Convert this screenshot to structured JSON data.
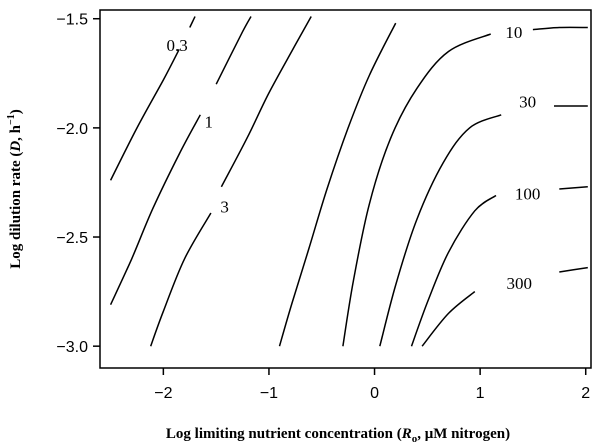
{
  "chart_data": {
    "type": "contour",
    "xlabel_parts": {
      "main": "Log limiting nutrient concentration (",
      "var": "R",
      "sub": "o",
      "rest": ", μM nitrogen)"
    },
    "ylabel_parts": {
      "main": "Log dilution rate (",
      "var": "D",
      "rest": ", h",
      "sup": "−1",
      "tail": ")"
    },
    "xlim": [
      -2.6,
      2.05
    ],
    "ylim": [
      -3.1,
      -1.46
    ],
    "xticks": [
      -2,
      -1,
      0,
      1,
      2
    ],
    "xtick_labels": [
      "−2",
      "−1",
      "0",
      "1",
      "2"
    ],
    "yticks": [
      -1.5,
      -2.0,
      -2.5,
      -3.0
    ],
    "ytick_labels": [
      "−1.5",
      "−2.0",
      "−2.5",
      "−3.0"
    ],
    "contours": [
      {
        "label": "0.3",
        "label_at": [
          -1.87,
          -1.62
        ],
        "points": [
          [
            -2.5,
            -2.24
          ],
          [
            -2.25,
            -2.0
          ],
          [
            -2.0,
            -1.78
          ],
          [
            -1.85,
            -1.64
          ]
        ],
        "points2": [
          [
            -1.75,
            -1.54
          ],
          [
            -1.7,
            -1.49
          ]
        ]
      },
      {
        "label": "1",
        "label_at": [
          -1.57,
          -1.97
        ],
        "points": [
          [
            -2.5,
            -2.81
          ],
          [
            -2.3,
            -2.6
          ],
          [
            -2.1,
            -2.37
          ],
          [
            -1.85,
            -2.12
          ],
          [
            -1.65,
            -1.94
          ]
        ],
        "points2": [
          [
            -1.5,
            -1.8
          ],
          [
            -1.25,
            -1.56
          ],
          [
            -1.17,
            -1.49
          ]
        ]
      },
      {
        "label": "3",
        "label_at": [
          -1.42,
          -2.36
        ],
        "points": [
          [
            -2.12,
            -3.0
          ],
          [
            -2.0,
            -2.84
          ],
          [
            -1.8,
            -2.6
          ],
          [
            -1.55,
            -2.39
          ]
        ],
        "points2": [
          [
            -1.45,
            -2.27
          ],
          [
            -1.2,
            -2.04
          ],
          [
            -1.0,
            -1.84
          ],
          [
            -0.75,
            -1.62
          ],
          [
            -0.6,
            -1.49
          ]
        ]
      },
      {
        "label": "",
        "points": [
          [
            -0.9,
            -3.0
          ],
          [
            -0.78,
            -2.8
          ],
          [
            -0.62,
            -2.55
          ],
          [
            -0.45,
            -2.28
          ],
          [
            -0.25,
            -2.0
          ],
          [
            -0.05,
            -1.76
          ],
          [
            0.2,
            -1.52
          ]
        ]
      },
      {
        "label": "10",
        "label_at": [
          1.32,
          -1.56
        ],
        "points": [
          [
            -0.3,
            -3.0
          ],
          [
            -0.2,
            -2.7
          ],
          [
            -0.05,
            -2.35
          ],
          [
            0.15,
            -2.05
          ],
          [
            0.4,
            -1.82
          ],
          [
            0.7,
            -1.65
          ],
          [
            1.1,
            -1.57
          ]
        ],
        "points2": [
          [
            1.5,
            -1.55
          ],
          [
            1.75,
            -1.54
          ],
          [
            2.02,
            -1.54
          ]
        ]
      },
      {
        "label": "30",
        "label_at": [
          1.45,
          -1.88
        ],
        "points": [
          [
            0.05,
            -3.0
          ],
          [
            0.2,
            -2.72
          ],
          [
            0.4,
            -2.42
          ],
          [
            0.65,
            -2.16
          ],
          [
            0.9,
            -2.0
          ],
          [
            1.2,
            -1.94
          ]
        ],
        "points2": [
          [
            1.7,
            -1.9
          ],
          [
            2.02,
            -1.9
          ]
        ]
      },
      {
        "label": "100",
        "label_at": [
          1.45,
          -2.3
        ],
        "points": [
          [
            0.35,
            -3.0
          ],
          [
            0.5,
            -2.8
          ],
          [
            0.7,
            -2.57
          ],
          [
            0.95,
            -2.38
          ],
          [
            1.15,
            -2.31
          ]
        ],
        "points2": [
          [
            1.75,
            -2.28
          ],
          [
            2.02,
            -2.27
          ]
        ]
      },
      {
        "label": "300",
        "label_at": [
          1.37,
          -2.71
        ],
        "points": [
          [
            0.45,
            -3.0
          ],
          [
            0.7,
            -2.85
          ],
          [
            0.95,
            -2.75
          ]
        ],
        "points2": [
          [
            1.75,
            -2.66
          ],
          [
            2.02,
            -2.64
          ]
        ]
      }
    ]
  }
}
